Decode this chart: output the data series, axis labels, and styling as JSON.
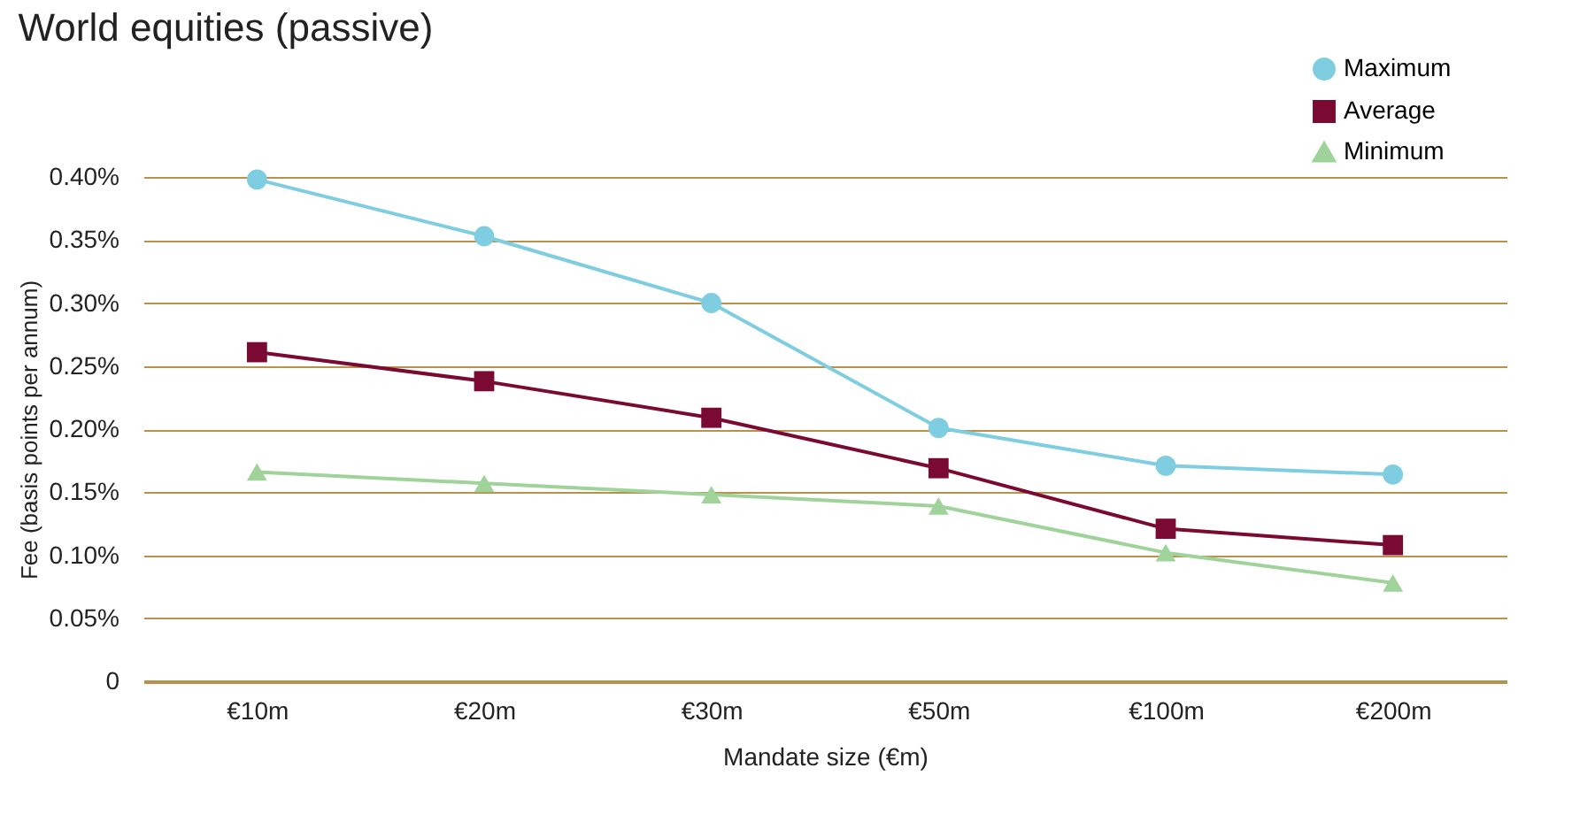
{
  "chart_data": {
    "type": "line",
    "title": "World equities (passive)",
    "xlabel": "Mandate size (€m)",
    "ylabel": "Fee (basis points per annum)",
    "categories": [
      "€10m",
      "€20m",
      "€30m",
      "€50m",
      "€100m",
      "€200m"
    ],
    "series": [
      {
        "name": "Maximum",
        "color": "#7ecde0",
        "marker": "circle",
        "values": [
          0.398,
          0.353,
          0.3,
          0.201,
          0.171,
          0.164
        ]
      },
      {
        "name": "Average",
        "color": "#7b0a33",
        "marker": "square",
        "values": [
          0.261,
          0.238,
          0.209,
          0.169,
          0.121,
          0.108
        ]
      },
      {
        "name": "Minimum",
        "color": "#9fd39a",
        "marker": "triangle",
        "values": [
          0.166,
          0.157,
          0.148,
          0.139,
          0.102,
          0.078
        ]
      }
    ],
    "ylim": [
      0,
      0.4
    ],
    "yticks": [
      0,
      {
        "value": 0.05,
        "label": "0.05%"
      },
      {
        "value": 0.1,
        "label": "0.10%"
      },
      {
        "value": 0.15,
        "label": "0.15%"
      },
      {
        "value": 0.2,
        "label": "0.20%"
      },
      {
        "value": 0.25,
        "label": "0.25%"
      },
      {
        "value": 0.3,
        "label": "0.30%"
      },
      {
        "value": 0.35,
        "label": "0.35%"
      },
      {
        "value": 0.4,
        "label": "0.40%"
      }
    ],
    "grid": "y",
    "legend": "top right",
    "line_style": "solid"
  }
}
